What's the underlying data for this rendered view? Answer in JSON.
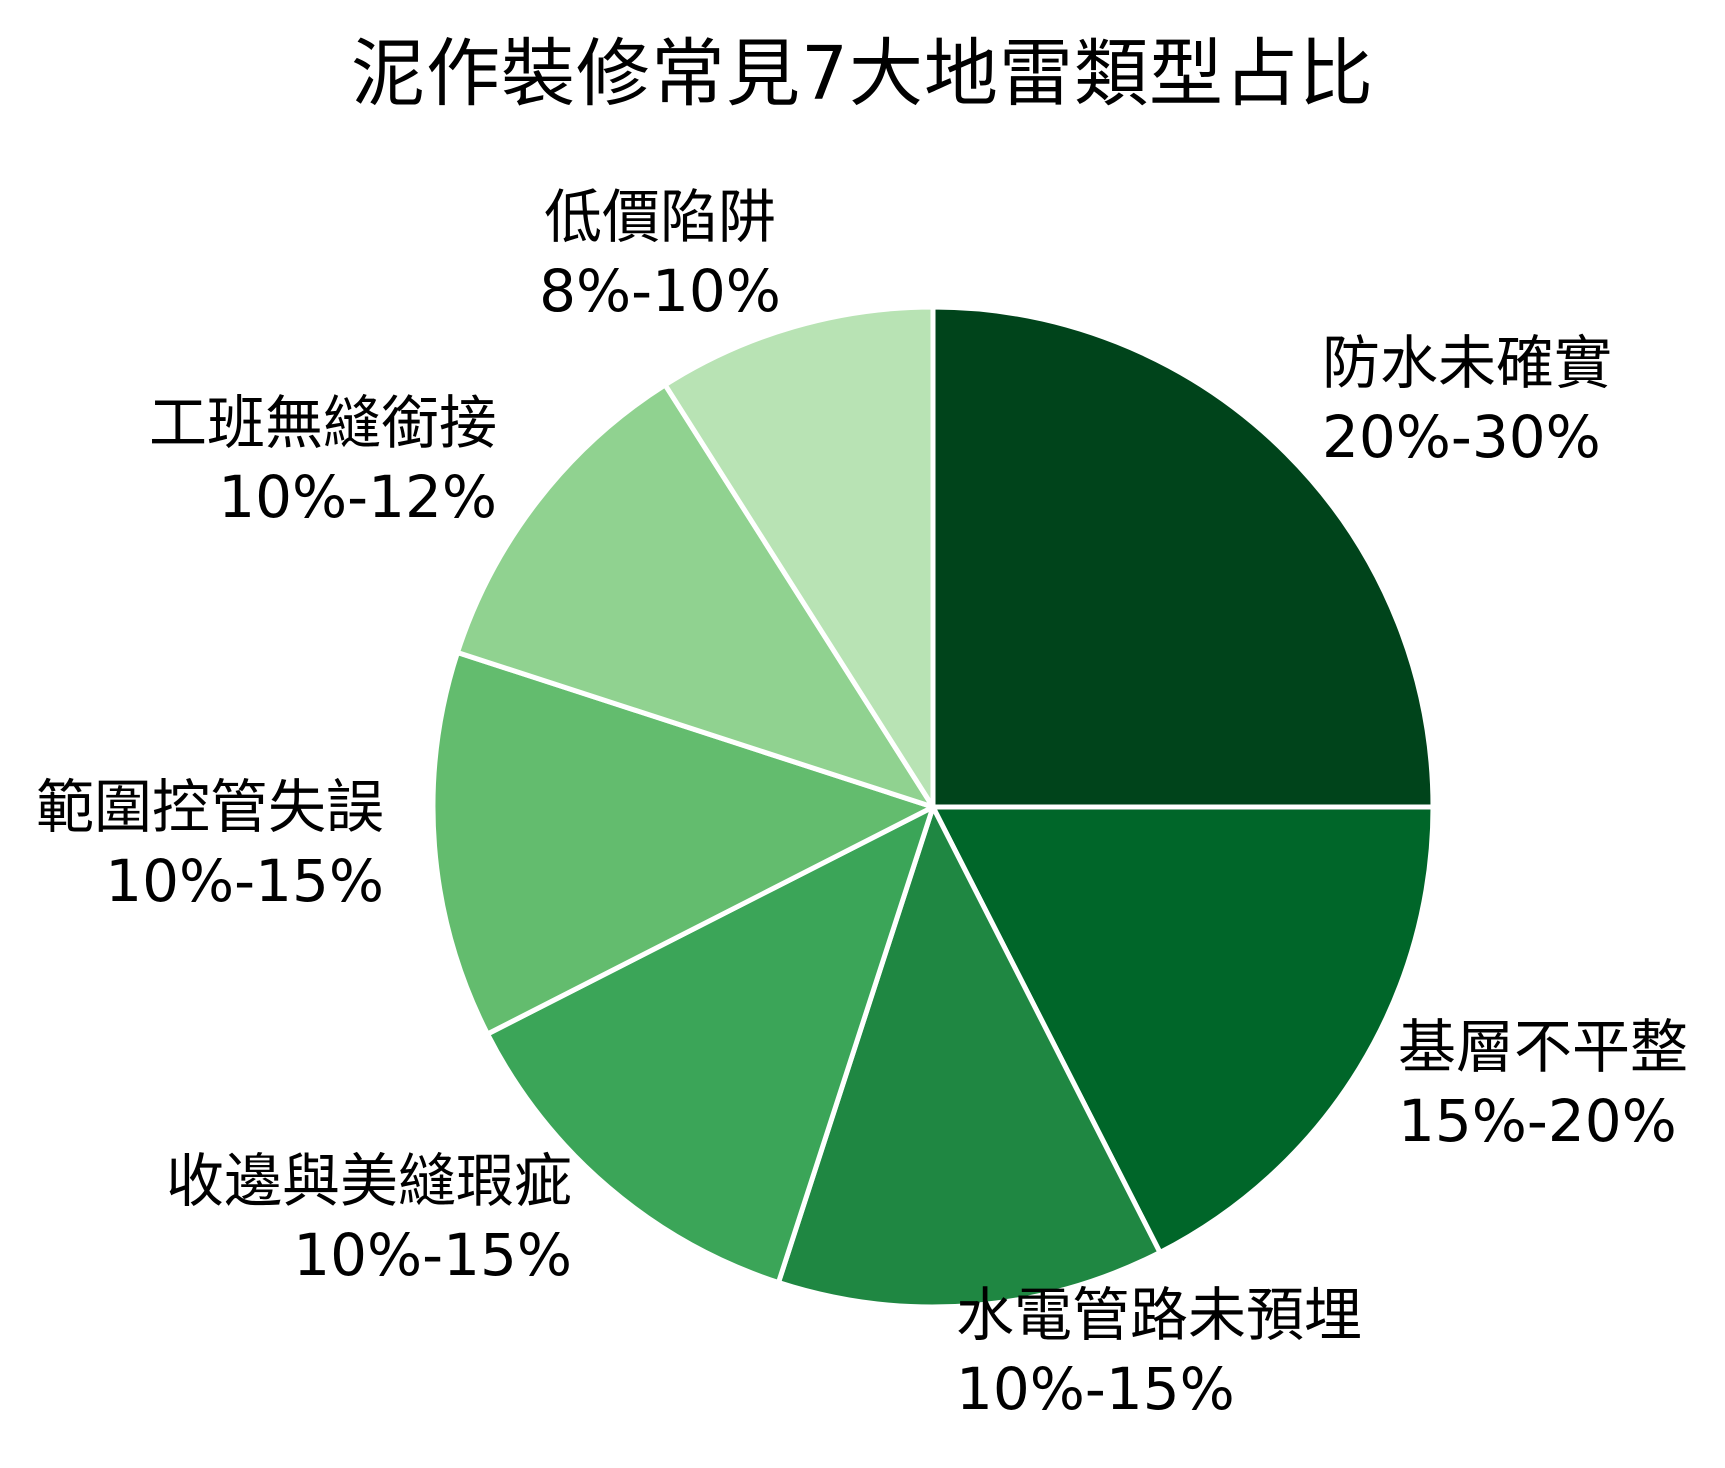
{
  "chart_data": {
    "type": "pie",
    "title": "泥作裝修常見7大地雷類型占比",
    "start_angle_deg": 0,
    "direction": "clockwise",
    "legend_position": "none",
    "label_style": "outside, two lines (name + percent range)",
    "background_color": "#ffffff",
    "slice_border_color": "#ffffff",
    "slices": [
      {
        "label": "防水未確實",
        "range": "20%-30%",
        "value": 25,
        "color": "#00441b"
      },
      {
        "label": "基層不平整",
        "range": "15%-20%",
        "value": 17.5,
        "color": "#006629"
      },
      {
        "label": "水電管路未預埋",
        "range": "10%-15%",
        "value": 12.5,
        "color": "#1f8742"
      },
      {
        "label": "收邊與美縫瑕疵",
        "range": "10%-15%",
        "value": 12.5,
        "color": "#3ba558"
      },
      {
        "label": "範圍控管失誤",
        "range": "10%-15%",
        "value": 12.5,
        "color": "#63bc6e"
      },
      {
        "label": "工班無縫銜接",
        "range": "10%-12%",
        "value": 11,
        "color": "#90d290"
      },
      {
        "label": "低價陷阱",
        "range": "8%-10%",
        "value": 9,
        "color": "#b8e3b4"
      }
    ]
  }
}
